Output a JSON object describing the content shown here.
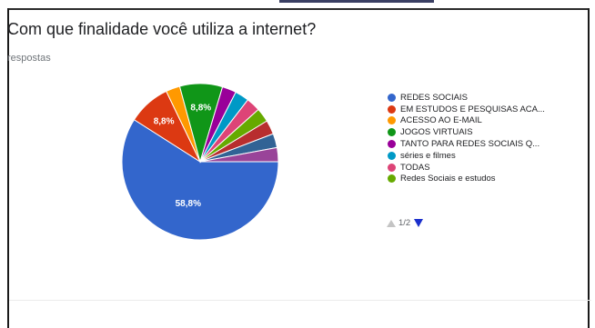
{
  "question": {
    "title": "Com que finalidade você utiliza a internet?",
    "subtitle": "respostas"
  },
  "pager": {
    "text": "1/2"
  },
  "chart_data": {
    "type": "pie",
    "title": "Com que finalidade você utiliza a internet?",
    "slices": [
      {
        "label": "REDES SOCIAIS",
        "value": 58.8,
        "color": "#3366cc",
        "data_label": "58,8%"
      },
      {
        "label": "EM ESTUDOS E PESQUISAS ACA...",
        "value": 8.8,
        "color": "#dc3912",
        "data_label": "8,8%"
      },
      {
        "label": "ACESSO AO E-MAIL",
        "value": 2.9,
        "color": "#ff9900",
        "data_label": ""
      },
      {
        "label": "JOGOS VIRTUAIS",
        "value": 8.8,
        "color": "#109618",
        "data_label": "8,8%"
      },
      {
        "label": "TANTO PARA REDES SOCIAIS Q...",
        "value": 2.9,
        "color": "#990099",
        "data_label": ""
      },
      {
        "label": "séries e filmes",
        "value": 2.9,
        "color": "#0099c6",
        "data_label": ""
      },
      {
        "label": "TODAS",
        "value": 2.9,
        "color": "#dd4477",
        "data_label": ""
      },
      {
        "label": "Redes Sociais e estudos",
        "value": 2.9,
        "color": "#66aa00",
        "data_label": ""
      },
      {
        "label": "",
        "value": 2.9,
        "color": "#b82e2e",
        "data_label": ""
      },
      {
        "label": "",
        "value": 2.9,
        "color": "#316395",
        "data_label": ""
      },
      {
        "label": "",
        "value": 2.9,
        "color": "#994499",
        "data_label": ""
      }
    ],
    "legend_position": "right",
    "legend_page": "1/2"
  }
}
